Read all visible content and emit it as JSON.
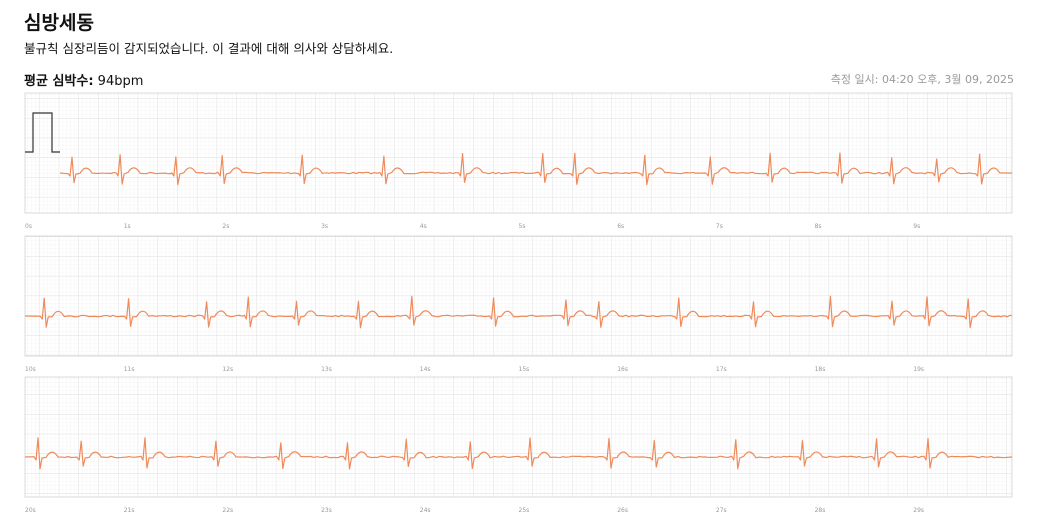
{
  "header": {
    "title": "심방세동",
    "subtitle": "불규칙 심장리듬이 감지되었습니다. 이 결과에 대해 의사와 상담하세요."
  },
  "summary": {
    "label": "평균 심박수:",
    "value": "94bpm",
    "timestamp": "측정 일시: 04:20 오후, 3월 09, 2025"
  },
  "strips": [
    {
      "ticks": [
        "0s",
        "1s",
        "2s",
        "3s",
        "4s",
        "5s",
        "6s",
        "7s",
        "8s",
        "9s"
      ]
    },
    {
      "ticks": [
        "10s",
        "11s",
        "12s",
        "13s",
        "14s",
        "15s",
        "16s",
        "17s",
        "18s",
        "19s"
      ]
    },
    {
      "ticks": [
        "20s",
        "21s",
        "22s",
        "23s",
        "24s",
        "25s",
        "26s",
        "27s",
        "28s",
        "29s"
      ]
    }
  ]
}
